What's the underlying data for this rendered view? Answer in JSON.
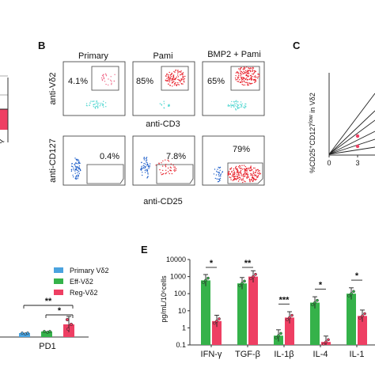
{
  "panel_a": {
    "tick_mark": "ɖ"
  },
  "panel_b": {
    "letter": "B",
    "columns": [
      "Primary",
      "Pami",
      "BMP2 + Pami"
    ],
    "top_row": {
      "y_label": "anti-Vδ2",
      "x_label": "anti-CD3",
      "percents": [
        "4.1%",
        "85%",
        "65%"
      ]
    },
    "bottom_row": {
      "y_label": "anti-CD127",
      "x_label": "anti-CD25",
      "percents": [
        "0.4%",
        "7.8%",
        "79%"
      ]
    },
    "colors": {
      "high": "#e8202a",
      "mid": "#f06a8a",
      "cyan": "#4fd6d0",
      "blue": "#1f5fc9"
    }
  },
  "panel_c": {
    "letter": "C",
    "y_label_main": "%CD25",
    "y_label_sup1": "+",
    "y_label_mid": "CD127",
    "y_label_sup2": "low",
    "y_label_end": " in Vδ2",
    "x_ticks": [
      "0",
      "3"
    ]
  },
  "panel_d": {
    "legend": [
      {
        "label": "Primary Vδ2",
        "color": "#4aa3df"
      },
      {
        "label": "Eff-Vδ2",
        "color": "#35b24a"
      },
      {
        "label": "Reg-Vδ2",
        "color": "#ee3f63"
      }
    ],
    "sig": [
      "**",
      "*"
    ],
    "x_label": "PD1"
  },
  "chart_data": {
    "type": "bar",
    "title": "",
    "xlabel": "",
    "ylabel": "pg/mL/10⁶cells",
    "yscale": "log",
    "ylim": [
      0.1,
      10000
    ],
    "y_ticks": [
      "10000",
      "1000",
      "100",
      "10",
      "1",
      "0.1"
    ],
    "categories": [
      "IFN-γ",
      "TGF-β",
      "IL-1β",
      "IL-4",
      "IL-1"
    ],
    "series": [
      {
        "name": "Eff-Vδ2",
        "color": "#35b24a",
        "values": [
          600,
          400,
          0.35,
          30,
          100
        ]
      },
      {
        "name": "Reg-Vδ2",
        "color": "#ee3f63",
        "values": [
          2.5,
          1000,
          4,
          0.15,
          5
        ]
      }
    ],
    "significance": [
      "*",
      "**",
      "***",
      "*",
      "*"
    ]
  },
  "panel_e": {
    "letter": "E"
  }
}
